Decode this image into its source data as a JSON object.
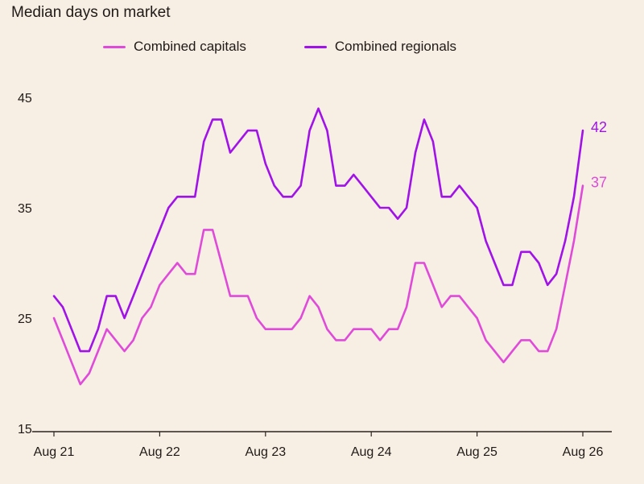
{
  "chart_data": {
    "type": "line",
    "title": "Median days on market",
    "xlabel": "",
    "ylabel": "",
    "ylim": [
      15,
      45
    ],
    "yticks": [
      15,
      25,
      35,
      45
    ],
    "xticks": [
      "Aug 21",
      "Aug 22",
      "Aug 23",
      "Aug 24",
      "Aug 25",
      "Aug 26"
    ],
    "x_start": "2021-08",
    "x_end": "2026-08",
    "grid": false,
    "legend": "top",
    "series": [
      {
        "name": "Combined capitals",
        "color": "#e04ad9",
        "end_label": "37",
        "values": [
          25,
          23,
          21,
          19,
          20,
          22,
          24,
          23,
          22,
          23,
          25,
          26,
          28,
          29,
          30,
          29,
          29,
          33,
          33,
          30,
          27,
          27,
          27,
          25,
          24,
          24,
          24,
          24,
          25,
          27,
          26,
          24,
          23,
          23,
          24,
          24,
          24,
          23,
          24,
          24,
          26,
          30,
          30,
          28,
          26,
          27,
          27,
          26,
          25,
          23,
          22,
          21,
          22,
          23,
          23,
          22,
          22,
          24,
          28,
          32,
          37
        ]
      },
      {
        "name": "Combined regionals",
        "color": "#a112e8",
        "end_label": "42",
        "values": [
          27,
          26,
          24,
          22,
          22,
          24,
          27,
          27,
          25,
          27,
          29,
          31,
          33,
          35,
          36,
          36,
          36,
          41,
          43,
          43,
          40,
          41,
          42,
          42,
          39,
          37,
          36,
          36,
          37,
          42,
          44,
          42,
          37,
          37,
          38,
          37,
          36,
          35,
          35,
          34,
          35,
          40,
          43,
          41,
          36,
          36,
          37,
          36,
          35,
          32,
          30,
          28,
          28,
          31,
          31,
          30,
          28,
          29,
          32,
          36,
          42
        ]
      }
    ]
  }
}
